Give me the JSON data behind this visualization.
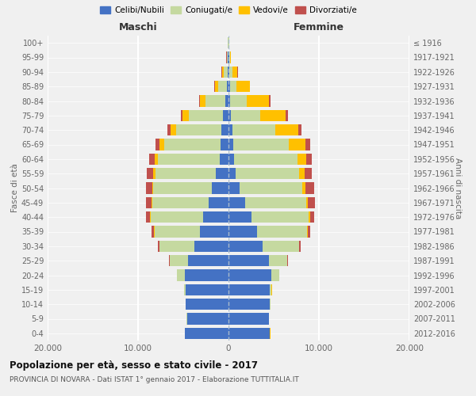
{
  "age_groups": [
    "0-4",
    "5-9",
    "10-14",
    "15-19",
    "20-24",
    "25-29",
    "30-34",
    "35-39",
    "40-44",
    "45-49",
    "50-54",
    "55-59",
    "60-64",
    "65-69",
    "70-74",
    "75-79",
    "80-84",
    "85-89",
    "90-94",
    "95-99",
    "100+"
  ],
  "birth_years": [
    "2012-2016",
    "2007-2011",
    "2002-2006",
    "1997-2001",
    "1992-1996",
    "1987-1991",
    "1982-1986",
    "1977-1981",
    "1972-1976",
    "1967-1971",
    "1962-1966",
    "1957-1961",
    "1952-1956",
    "1947-1951",
    "1942-1946",
    "1937-1941",
    "1932-1936",
    "1927-1931",
    "1922-1926",
    "1917-1921",
    "≤ 1916"
  ],
  "males": {
    "celibe": [
      4800,
      4600,
      4700,
      4700,
      4800,
      4500,
      3800,
      3200,
      2800,
      2200,
      1800,
      1400,
      1000,
      900,
      800,
      600,
      350,
      200,
      120,
      60,
      30
    ],
    "coniugato": [
      10,
      20,
      50,
      200,
      900,
      2000,
      3800,
      5000,
      5800,
      6200,
      6500,
      6700,
      6800,
      6200,
      5000,
      3800,
      2200,
      900,
      400,
      100,
      30
    ],
    "vedovo": [
      1,
      1,
      1,
      2,
      5,
      10,
      20,
      30,
      50,
      100,
      150,
      250,
      350,
      500,
      600,
      700,
      600,
      400,
      200,
      50,
      10
    ],
    "divorziato": [
      1,
      1,
      2,
      5,
      20,
      60,
      150,
      300,
      450,
      600,
      700,
      700,
      600,
      500,
      350,
      200,
      100,
      50,
      30,
      20,
      5
    ]
  },
  "females": {
    "nubile": [
      4600,
      4500,
      4600,
      4600,
      4700,
      4500,
      3800,
      3200,
      2500,
      1800,
      1200,
      800,
      600,
      500,
      400,
      300,
      200,
      150,
      100,
      60,
      30
    ],
    "coniugata": [
      5,
      10,
      40,
      180,
      900,
      2000,
      4000,
      5500,
      6400,
      6800,
      7000,
      7000,
      7000,
      6200,
      4800,
      3200,
      1800,
      700,
      300,
      100,
      30
    ],
    "vedova": [
      1,
      1,
      1,
      2,
      5,
      10,
      30,
      50,
      100,
      200,
      350,
      600,
      1000,
      1800,
      2500,
      2800,
      2500,
      1500,
      600,
      100,
      20
    ],
    "divorziata": [
      1,
      1,
      2,
      5,
      20,
      60,
      150,
      250,
      500,
      750,
      900,
      800,
      650,
      500,
      350,
      250,
      150,
      50,
      30,
      20,
      5
    ]
  },
  "colors": {
    "celibe": "#4472C4",
    "coniugato": "#c5d9a0",
    "vedovo": "#ffc000",
    "divorziato": "#c0504d"
  },
  "title": "Popolazione per età, sesso e stato civile - 2017",
  "subtitle": "PROVINCIA DI NOVARA - Dati ISTAT 1° gennaio 2017 - Elaborazione TUTTITALIA.IT",
  "xlabel_left": "Maschi",
  "xlabel_right": "Femmine",
  "ylabel_left": "Fasce di età",
  "ylabel_right": "Anni di nascita",
  "xlim": 20000,
  "background_color": "#f0f0f0",
  "grid_color": "#ffffff",
  "legend_labels": [
    "Celibi/Nubili",
    "Coniugati/e",
    "Vedovi/e",
    "Divorziati/e"
  ]
}
